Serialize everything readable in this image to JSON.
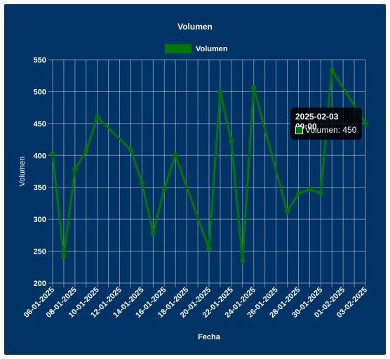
{
  "chart_data": {
    "type": "line",
    "title": "Volumen",
    "xlabel": "Fecha",
    "ylabel": "Volumen",
    "ylim": [
      200,
      550
    ],
    "ytick_step": 50,
    "x_range": [
      "2025-01-06",
      "2025-02-03"
    ],
    "tick_labels": [
      "06-01-2025",
      "08-01-2025",
      "10-01-2025",
      "12-01-2025",
      "14-01-2025",
      "16-01-2025",
      "18-01-2025",
      "20-01-2025",
      "22-01-2025",
      "24-01-2025",
      "26-01-2025",
      "28-01-2025",
      "30-01-2025",
      "01-02-2025",
      "03-02-2025"
    ],
    "grid": true,
    "legend_position": "top",
    "series": [
      {
        "name": "Volumen",
        "color": "#007800",
        "points": [
          {
            "x": "2025-01-06",
            "y": 403
          },
          {
            "x": "2025-01-07",
            "y": 242
          },
          {
            "x": "2025-01-08",
            "y": 378
          },
          {
            "x": "2025-01-09",
            "y": 407
          },
          {
            "x": "2025-01-10",
            "y": 460
          },
          {
            "x": "2025-01-13",
            "y": 409
          },
          {
            "x": "2025-01-14",
            "y": 357
          },
          {
            "x": "2025-01-15",
            "y": 278
          },
          {
            "x": "2025-01-16",
            "y": 348
          },
          {
            "x": "2025-01-17",
            "y": 400
          },
          {
            "x": "2025-01-20",
            "y": 254
          },
          {
            "x": "2025-01-21",
            "y": 500
          },
          {
            "x": "2025-01-22",
            "y": 422
          },
          {
            "x": "2025-01-23",
            "y": 235
          },
          {
            "x": "2025-01-24",
            "y": 506
          },
          {
            "x": "2025-01-27",
            "y": 312
          },
          {
            "x": "2025-01-28",
            "y": 340
          },
          {
            "x": "2025-01-29",
            "y": 347
          },
          {
            "x": "2025-01-30",
            "y": 341
          },
          {
            "x": "2025-01-31",
            "y": 534
          },
          {
            "x": "2025-02-03",
            "y": 450
          }
        ]
      }
    ]
  },
  "tooltip": {
    "title": "2025-02-03 00:00",
    "label": "Volumen: 450"
  }
}
